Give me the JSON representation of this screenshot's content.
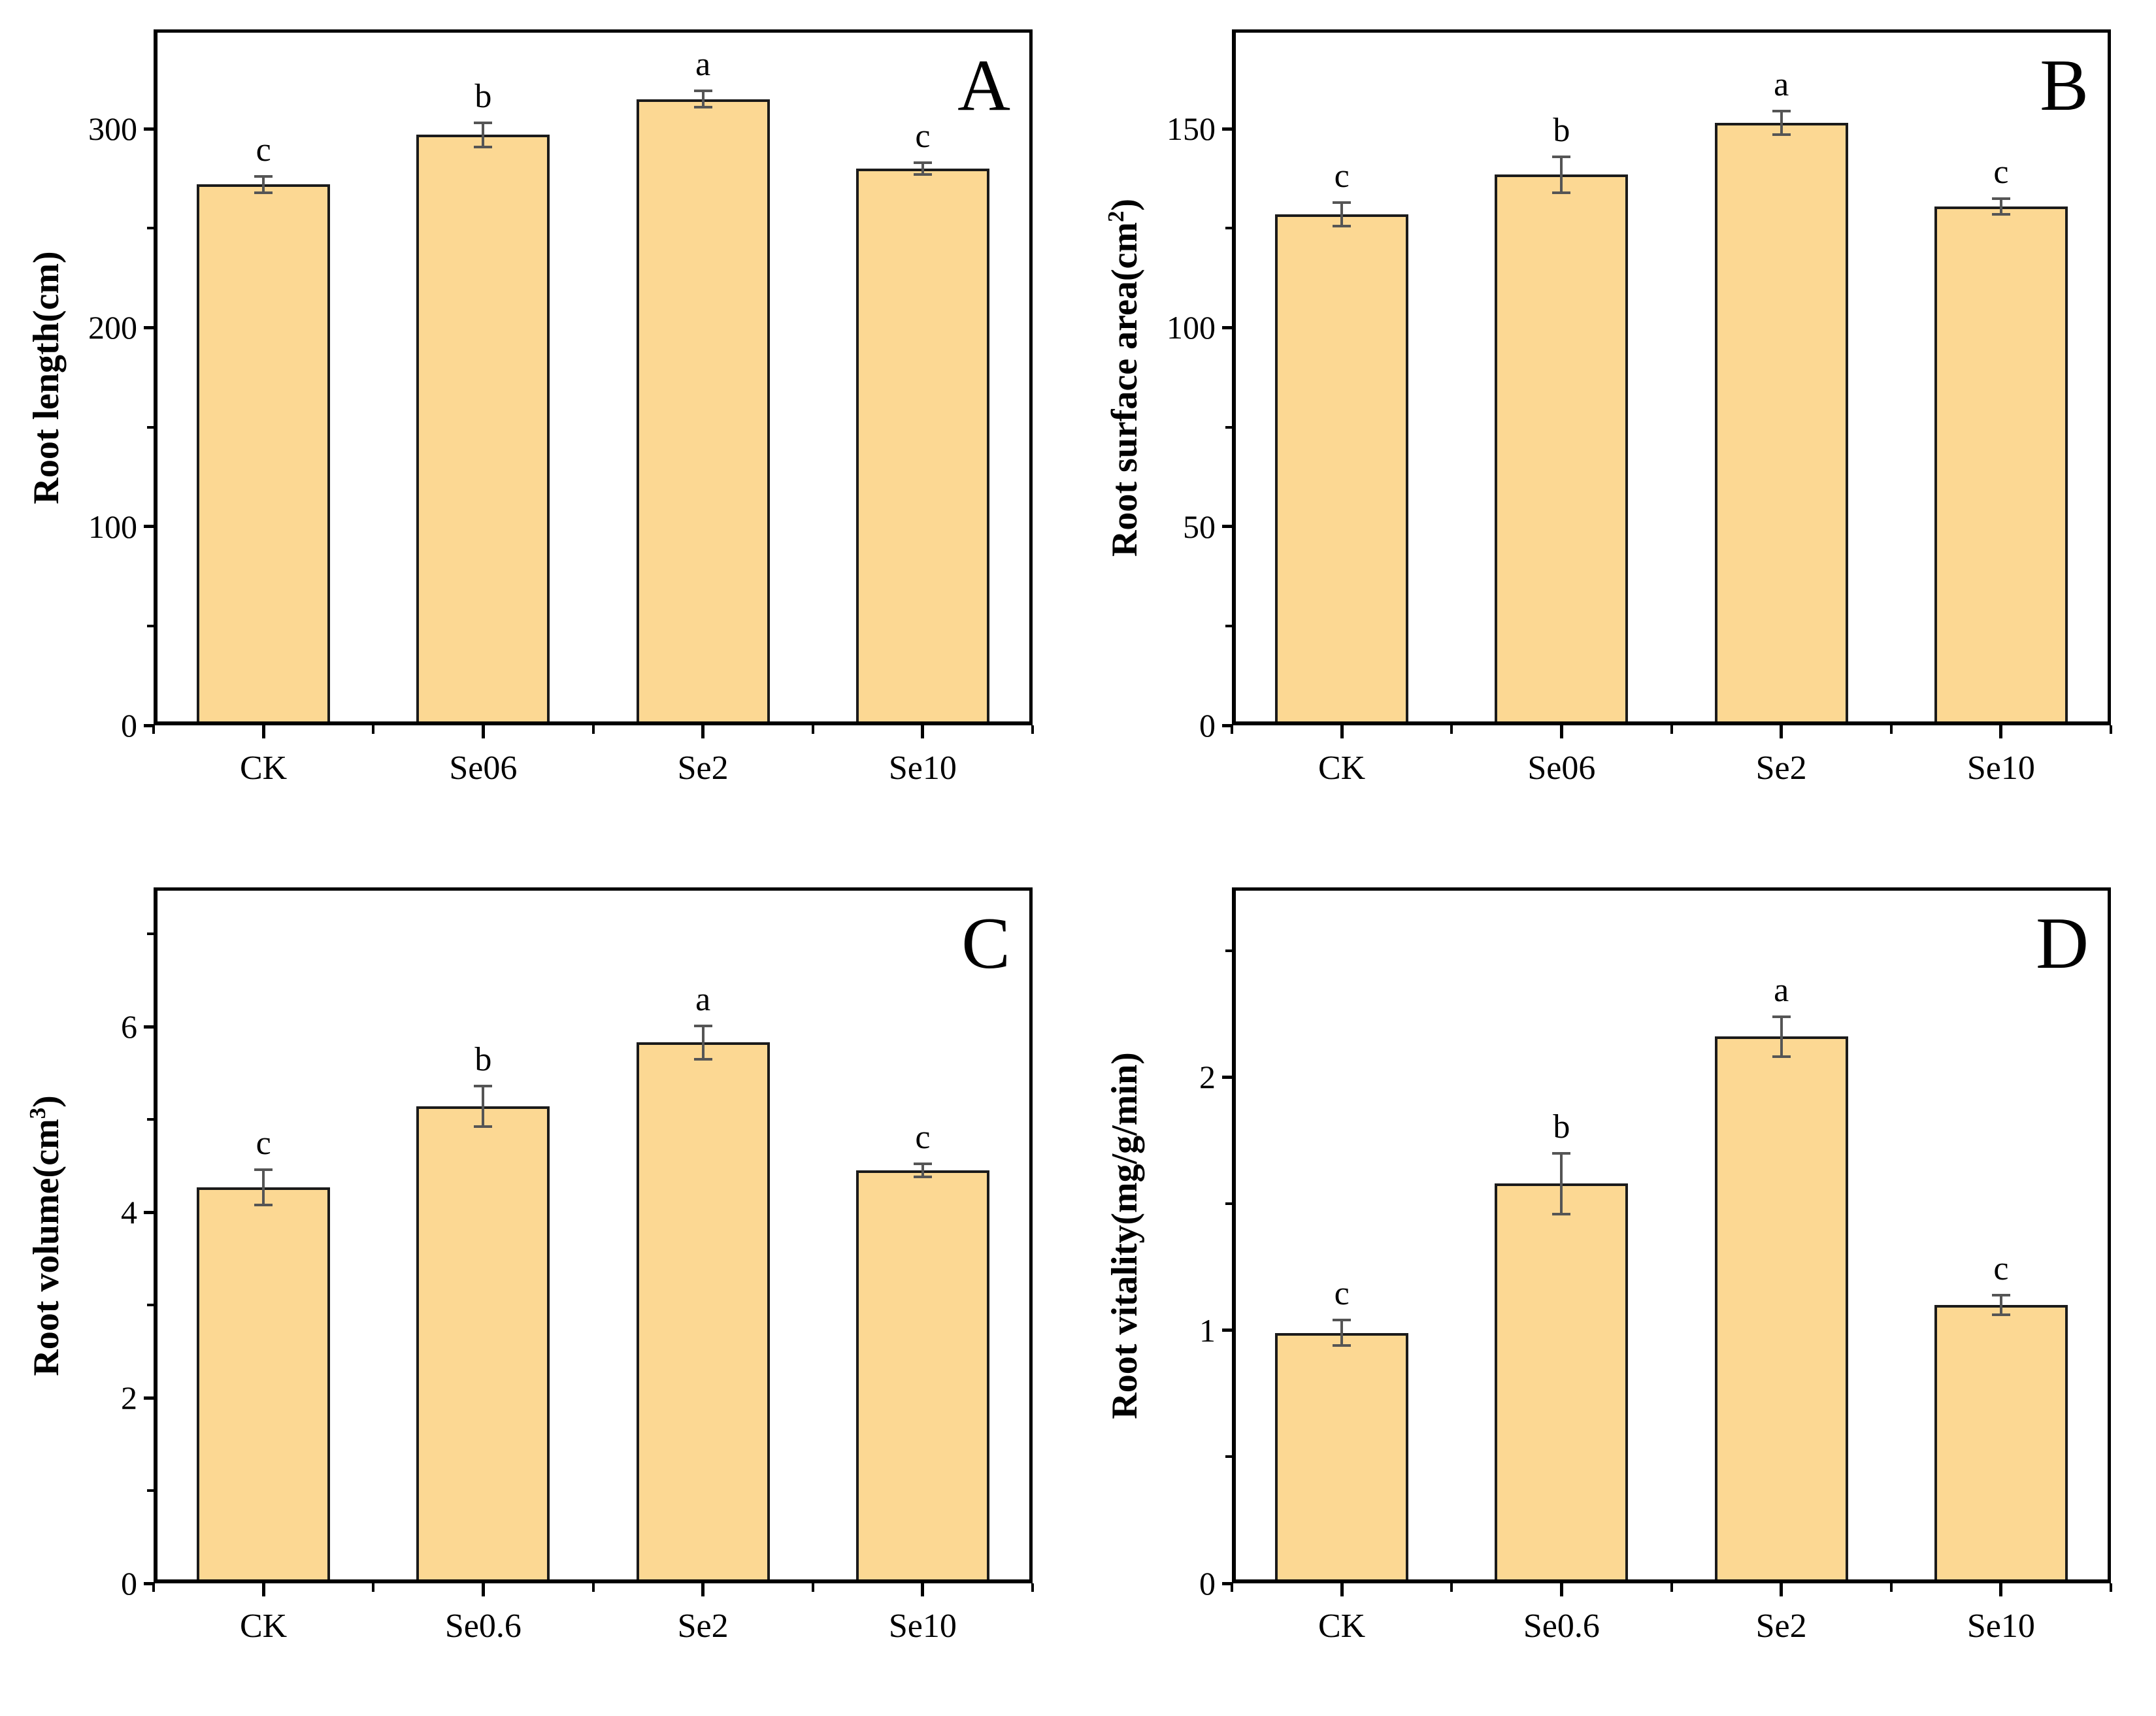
{
  "page": {
    "background": "#ffffff"
  },
  "style": {
    "bar_fill": "#FCD893",
    "bar_border": "#1b1b1b",
    "axis_color": "#000000",
    "error_bar_color": "#555555",
    "text_color": "#000000"
  },
  "chart_data": [
    {
      "type": "bar",
      "panel_label": "A",
      "ylabel": {
        "pre": "Root length(cm)",
        "sup": "",
        "post": ""
      },
      "categories": [
        "CK",
        "Se06",
        "Se2",
        "Se10"
      ],
      "values": [
        272,
        297,
        315,
        280
      ],
      "errors": [
        4,
        6,
        4,
        3
      ],
      "sig_letters": [
        "c",
        "b",
        "a",
        "c"
      ],
      "ylim": [
        0,
        350
      ],
      "yticks_major": [
        0,
        100,
        200,
        300
      ],
      "yticks_minor": [
        50,
        150,
        250
      ],
      "grid": false,
      "legend": "none"
    },
    {
      "type": "bar",
      "panel_label": "B",
      "ylabel": {
        "pre": "Root surface area(cm",
        "sup": "2",
        "post": ")"
      },
      "categories": [
        "CK",
        "Se06",
        "Se2",
        "Se10"
      ],
      "values": [
        128.5,
        138.5,
        151.5,
        130.5
      ],
      "errors": [
        3,
        4.5,
        3,
        2
      ],
      "sig_letters": [
        "c",
        "b",
        "a",
        "c"
      ],
      "ylim": [
        0,
        175
      ],
      "yticks_major": [
        0,
        50,
        100,
        150
      ],
      "yticks_minor": [
        25,
        75,
        125
      ],
      "grid": false,
      "legend": "none"
    },
    {
      "type": "bar",
      "panel_label": "C",
      "ylabel": {
        "pre": "Root volume(cm",
        "sup": "3",
        "post": ")"
      },
      "categories": [
        "CK",
        "Se0.6",
        "Se2",
        "Se10"
      ],
      "values": [
        4.27,
        5.14,
        5.83,
        4.45
      ],
      "errors": [
        0.19,
        0.22,
        0.18,
        0.07
      ],
      "sig_letters": [
        "c",
        "b",
        "a",
        "c"
      ],
      "ylim": [
        0,
        7.5
      ],
      "yticks_major": [
        0,
        2,
        4,
        6
      ],
      "yticks_minor": [
        1,
        3,
        5,
        7
      ],
      "grid": false,
      "legend": "none"
    },
    {
      "type": "bar",
      "panel_label": "D",
      "ylabel": {
        "pre": "Root vitality(mg/g/min)",
        "sup": "",
        "post": ""
      },
      "categories": [
        "CK",
        "Se0.6",
        "Se2",
        "Se10"
      ],
      "values": [
        0.99,
        1.58,
        2.16,
        1.1
      ],
      "errors": [
        0.05,
        0.12,
        0.08,
        0.04
      ],
      "sig_letters": [
        "c",
        "b",
        "a",
        "c"
      ],
      "ylim": [
        0,
        2.75
      ],
      "yticks_major": [
        0,
        1,
        2
      ],
      "yticks_minor": [
        0.5,
        1.5,
        2.5
      ],
      "grid": false,
      "legend": "none"
    }
  ]
}
